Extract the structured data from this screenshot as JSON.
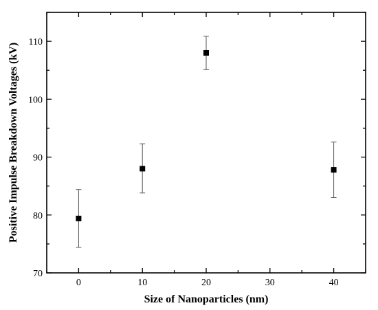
{
  "chart_data": {
    "type": "scatter",
    "title": "",
    "xlabel": "Size of Nanoparticles (nm)",
    "ylabel": "Positive Impulse Breakdown Voltages (kV)",
    "xlim": [
      -5,
      45
    ],
    "ylim": [
      70,
      115
    ],
    "x_ticks": [
      0,
      10,
      20,
      30,
      40
    ],
    "y_ticks": [
      70,
      80,
      90,
      100,
      110
    ],
    "x_tick_labels": [
      "0",
      "10",
      "20",
      "30",
      "40"
    ],
    "y_tick_labels": [
      "70",
      "80",
      "90",
      "100",
      "110"
    ],
    "grid": false,
    "legend": "none",
    "marker": "square",
    "marker_color": "#000000",
    "errorbar_color": "#555555",
    "series": [
      {
        "x": [
          0,
          10,
          20,
          40
        ],
        "y": [
          79.4,
          88.0,
          108.0,
          87.8
        ],
        "y_low": [
          74.4,
          83.8,
          105.1,
          83.0
        ],
        "y_high": [
          84.4,
          92.3,
          110.9,
          92.6
        ]
      }
    ]
  }
}
